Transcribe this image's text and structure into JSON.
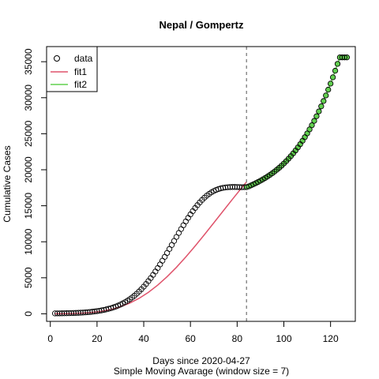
{
  "chart_data": {
    "type": "scatter",
    "title": "Nepal / Gompertz",
    "xlabel": "Days since 2020-04-27",
    "sub": "Simple Moving Avarage (window size = 7)",
    "ylabel": "Cumulative Cases",
    "xlim": [
      -1.6,
      130.6
    ],
    "ylim": [
      -1050,
      37100
    ],
    "x_ticks": [
      "0",
      "20",
      "40",
      "60",
      "80",
      "100",
      "120"
    ],
    "y_ticks": [
      "0",
      "5000",
      "10000",
      "15000",
      "20000",
      "25000",
      "30000",
      "35000"
    ],
    "x_tick_values": [
      0,
      20,
      40,
      60,
      80,
      100,
      120
    ],
    "y_tick_values": [
      0,
      5000,
      10000,
      15000,
      20000,
      25000,
      30000,
      35000
    ],
    "cutoff_day": 84,
    "legend": {
      "position": "top-left",
      "entries": [
        "data",
        "fit1",
        "fit2"
      ]
    },
    "colors": {
      "fit1": "#DF536B",
      "fit2": "#61D04F",
      "data": "#000000",
      "cutoff": "#555555"
    },
    "series": [
      {
        "name": "data",
        "kind": "points",
        "x": [
          2,
          3,
          4,
          5,
          6,
          7,
          8,
          9,
          10,
          11,
          12,
          13,
          14,
          15,
          16,
          17,
          18,
          19,
          20,
          21,
          22,
          23,
          24,
          25,
          26,
          27,
          28,
          29,
          30,
          31,
          32,
          33,
          34,
          35,
          36,
          37,
          38,
          39,
          40,
          41,
          42,
          43,
          44,
          45,
          46,
          47,
          48,
          49,
          50,
          51,
          52,
          53,
          54,
          55,
          56,
          57,
          58,
          59,
          60,
          61,
          62,
          63,
          64,
          65,
          66,
          67,
          68,
          69,
          70,
          71,
          72,
          73,
          74,
          75,
          76,
          77,
          78,
          79,
          80,
          81,
          82,
          83,
          84,
          85,
          86,
          87,
          88,
          89,
          90,
          91,
          92,
          93,
          94,
          95,
          96,
          97,
          98,
          99,
          100,
          101,
          102,
          103,
          104,
          105,
          106,
          107,
          108,
          109,
          110,
          111,
          112,
          113,
          114,
          115,
          116,
          117,
          118,
          119,
          120,
          121,
          122,
          123,
          124,
          125,
          126,
          127
        ],
        "y": [
          54,
          57,
          61,
          66,
          72,
          79,
          87,
          97,
          108,
          121,
          136,
          153,
          173,
          196,
          222,
          252,
          286,
          325,
          369,
          420,
          477,
          541,
          613,
          695,
          786,
          889,
          1004,
          1133,
          1276,
          1435,
          1611,
          1806,
          2020,
          2255,
          2512,
          2791,
          3093,
          3419,
          3769,
          4143,
          4541,
          4962,
          5405,
          5869,
          6353,
          6855,
          7373,
          7905,
          8448,
          8999,
          9555,
          10113,
          10670,
          11222,
          11766,
          12299,
          12817,
          13317,
          13797,
          14254,
          14686,
          15090,
          15466,
          15810,
          16123,
          16403,
          16650,
          16864,
          17046,
          17197,
          17320,
          17416,
          17489,
          17542,
          17576,
          17596,
          17605,
          17605,
          17600,
          17588,
          17575,
          17587,
          17587,
          17696,
          17837,
          17986,
          18142,
          18307,
          18480,
          18663,
          18856,
          19061,
          19276,
          19505,
          19747,
          20003,
          20274,
          20561,
          20865,
          21187,
          21527,
          21888,
          22269,
          22672,
          23097,
          23546,
          24020,
          24519,
          25044,
          25597,
          26178,
          26788,
          27429,
          28101,
          28805,
          29542,
          30313,
          31118,
          31959,
          32836,
          33749,
          34700,
          35600,
          35600,
          35600,
          35600
        ]
      },
      {
        "name": "fit1",
        "kind": "line",
        "x": [
          2,
          6,
          10,
          14,
          18,
          22,
          26,
          30,
          34,
          38,
          42,
          46,
          50,
          54,
          58,
          62,
          66,
          70,
          74,
          78,
          82,
          84
        ],
        "y": [
          6,
          17,
          43,
          95,
          191,
          353,
          605,
          974,
          1482,
          2149,
          2983,
          3985,
          5148,
          6454,
          7881,
          9404,
          10995,
          12626,
          14271,
          15908,
          17517,
          18305
        ]
      },
      {
        "name": "fit2",
        "kind": "points-line",
        "x": [
          84,
          85,
          86,
          87,
          88,
          89,
          90,
          91,
          92,
          93,
          94,
          95,
          96,
          97,
          98,
          99,
          100,
          101,
          102,
          103,
          104,
          105,
          106,
          107,
          108,
          109,
          110,
          111,
          112,
          113,
          114,
          115,
          116,
          117,
          118,
          119,
          120,
          121,
          122,
          123,
          124,
          125,
          126,
          127
        ],
        "y": [
          17587,
          17696,
          17837,
          17986,
          18142,
          18307,
          18480,
          18663,
          18856,
          19061,
          19276,
          19505,
          19747,
          20003,
          20274,
          20561,
          20865,
          21187,
          21527,
          21888,
          22269,
          22672,
          23097,
          23546,
          24020,
          24519,
          25044,
          25597,
          26178,
          26788,
          27429,
          28101,
          28805,
          29542,
          30313,
          31118,
          31959,
          32836,
          33749,
          34700,
          35600,
          35600,
          35600,
          35600
        ]
      }
    ]
  }
}
